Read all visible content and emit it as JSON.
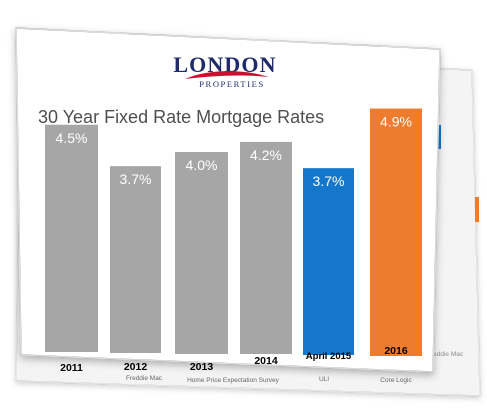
{
  "brand": {
    "logo_text": "LONDON",
    "logo_subtext": "PROPERTIES",
    "accent_color": "#c8102e",
    "navy_color": "#1f2a6b"
  },
  "chart_data": {
    "type": "bar",
    "title": "30 Year Fixed Rate Mortgage Rates",
    "categories": [
      "2011",
      "2012",
      "2013",
      "2014",
      "April 2015",
      "2016"
    ],
    "values": [
      4.5,
      3.7,
      4.0,
      4.2,
      3.7,
      4.9
    ],
    "value_labels": [
      "4.5%",
      "3.7%",
      "4.0%",
      "4.2%",
      "3.7%",
      "4.9%"
    ],
    "bar_colors": [
      "#a6a6a6",
      "#a6a6a6",
      "#a6a6a6",
      "#a6a6a6",
      "#1577cb",
      "#ef7b2c"
    ],
    "grid": false,
    "xlabel": "",
    "ylabel": ""
  },
  "back_sheet": {
    "labels": [
      "Freddie Mac",
      "Home Price Expectation Survey",
      "ULI",
      "Core Logic"
    ],
    "corner_label": "Freddie Mac"
  }
}
